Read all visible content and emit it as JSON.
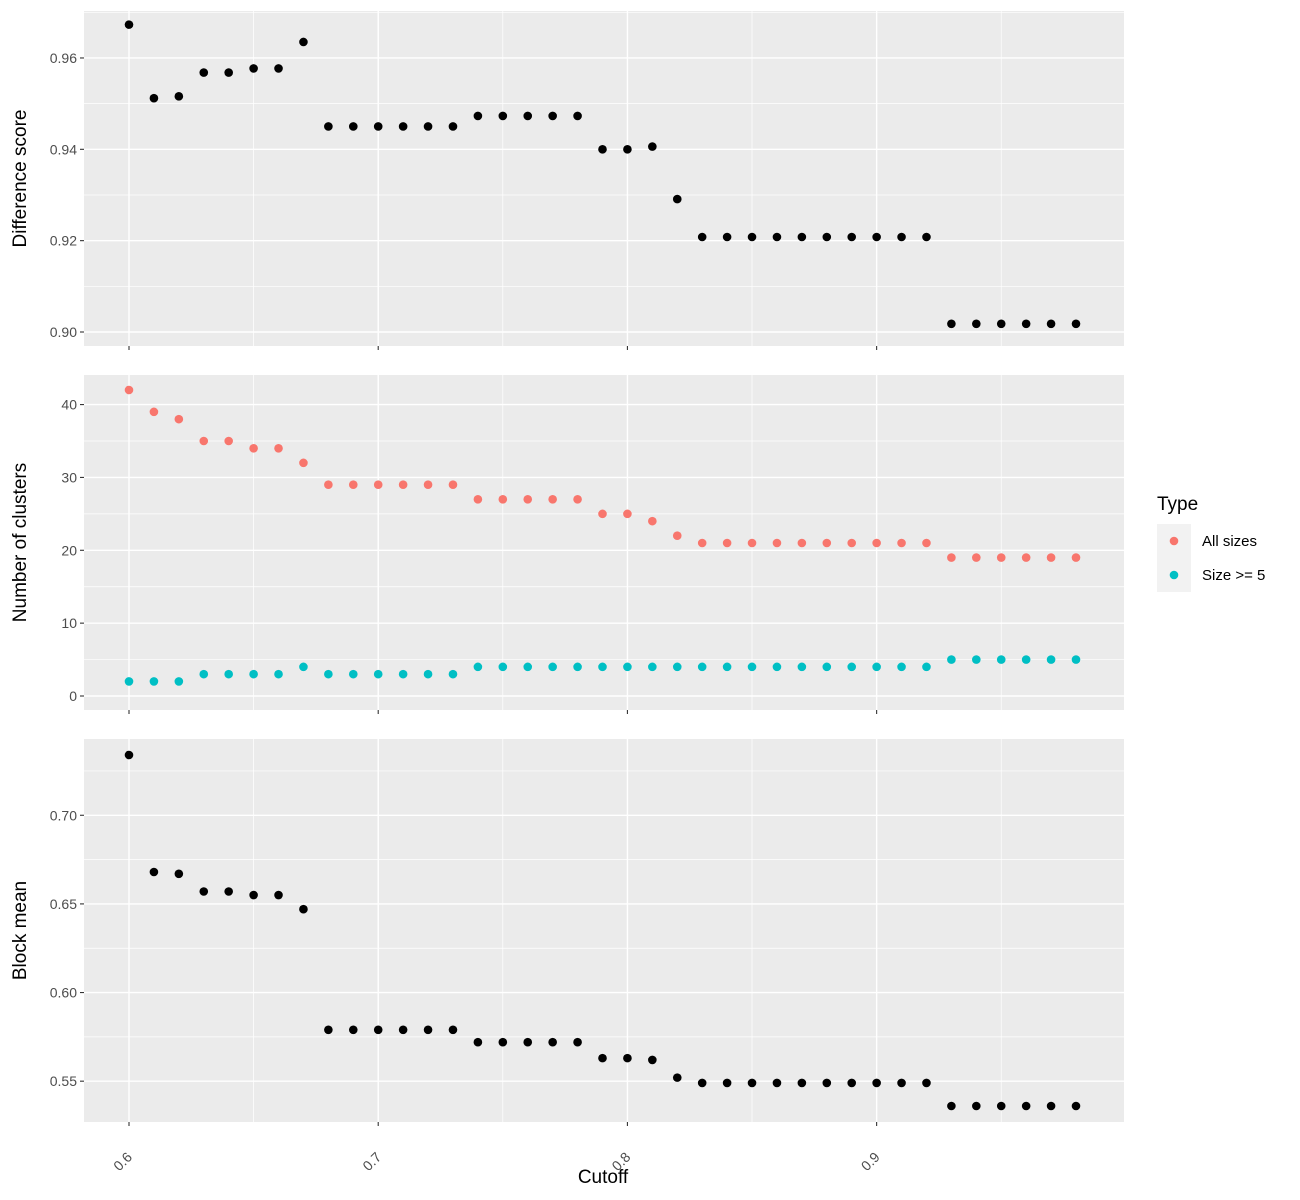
{
  "chart_data": {
    "type": "scatter",
    "xlabel": "Cutoff",
    "xlim": [
      0.6,
      0.98
    ],
    "xticks": [
      "0.6",
      "0.7",
      "0.8",
      "0.9"
    ],
    "x": [
      0.6,
      0.61,
      0.62,
      0.63,
      0.64,
      0.65,
      0.66,
      0.67,
      0.68,
      0.69,
      0.7,
      0.71,
      0.72,
      0.73,
      0.74,
      0.75,
      0.76,
      0.77,
      0.78,
      0.79,
      0.8,
      0.81,
      0.82,
      0.83,
      0.84,
      0.85,
      0.86,
      0.87,
      0.88,
      0.89,
      0.9,
      0.91,
      0.92,
      0.93,
      0.94,
      0.95,
      0.96,
      0.97,
      0.98
    ],
    "grid": true,
    "legend": {
      "title": "Type",
      "placement": "right"
    },
    "panels": [
      {
        "ylabel": "Difference score",
        "ylim": [
          0.9,
          0.967
        ],
        "yticks": [
          "0.90",
          "0.92",
          "0.94",
          "0.96"
        ],
        "series": [
          {
            "color": "#000000",
            "values": [
              0.9673,
              0.9512,
              0.9516,
              0.9568,
              0.9568,
              0.9577,
              0.9577,
              0.9635,
              0.945,
              0.945,
              0.945,
              0.945,
              0.945,
              0.945,
              0.9473,
              0.9473,
              0.9473,
              0.9473,
              0.9473,
              0.94,
              0.94,
              0.9406,
              0.9291,
              0.9208,
              0.9208,
              0.9208,
              0.9208,
              0.9208,
              0.9208,
              0.9208,
              0.9208,
              0.9208,
              0.9208,
              0.9018,
              0.9018,
              0.9018,
              0.9018,
              0.9018,
              0.9018
            ]
          }
        ]
      },
      {
        "ylabel": "Number of clusters",
        "ylim": [
          0,
          42
        ],
        "yticks": [
          "0",
          "10",
          "20",
          "30",
          "40"
        ],
        "series": [
          {
            "name": "All sizes",
            "color": "#F8766D",
            "values": [
              42,
              39,
              38,
              35,
              35,
              34,
              34,
              32,
              29,
              29,
              29,
              29,
              29,
              29,
              27,
              27,
              27,
              27,
              27,
              25,
              25,
              24,
              22,
              21,
              21,
              21,
              21,
              21,
              21,
              21,
              21,
              21,
              21,
              19,
              19,
              19,
              19,
              19,
              19
            ]
          },
          {
            "name": "Size >= 5",
            "color": "#00BFC4",
            "values": [
              2,
              2,
              2,
              3,
              3,
              3,
              3,
              4,
              3,
              3,
              3,
              3,
              3,
              3,
              4,
              4,
              4,
              4,
              4,
              4,
              4,
              4,
              4,
              4,
              4,
              4,
              4,
              4,
              4,
              4,
              4,
              4,
              4,
              5,
              5,
              5,
              5,
              5,
              5
            ]
          }
        ]
      },
      {
        "ylabel": "Block mean",
        "ylim": [
          0.536,
          0.734
        ],
        "yticks": [
          "0.55",
          "0.60",
          "0.65",
          "0.70"
        ],
        "series": [
          {
            "color": "#000000",
            "values": [
              0.734,
              0.668,
              0.667,
              0.657,
              0.657,
              0.655,
              0.655,
              0.647,
              0.579,
              0.579,
              0.579,
              0.579,
              0.579,
              0.579,
              0.572,
              0.572,
              0.572,
              0.572,
              0.572,
              0.563,
              0.563,
              0.562,
              0.552,
              0.549,
              0.549,
              0.549,
              0.549,
              0.549,
              0.549,
              0.549,
              0.549,
              0.549,
              0.549,
              0.536,
              0.536,
              0.536,
              0.536,
              0.536,
              0.536
            ]
          }
        ]
      }
    ]
  }
}
